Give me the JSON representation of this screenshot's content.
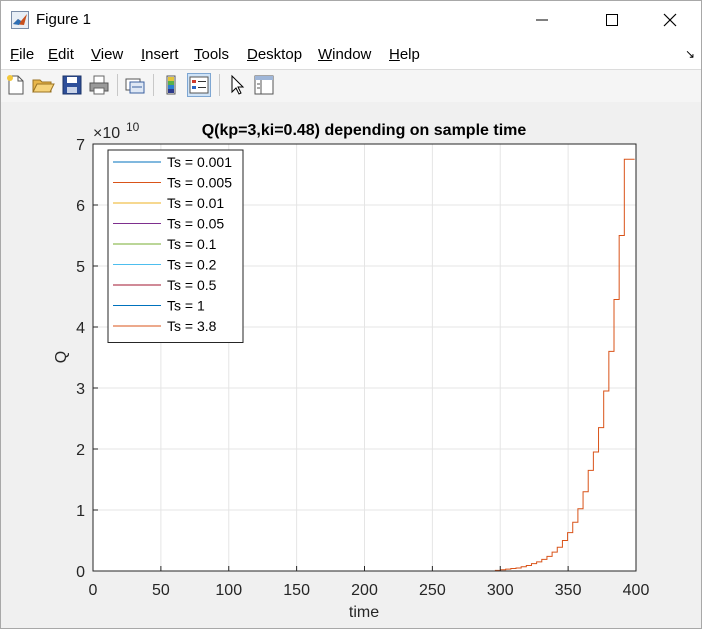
{
  "window": {
    "title": "Figure 1",
    "controls": [
      "minimize",
      "maximize",
      "close"
    ]
  },
  "menu": {
    "items": [
      {
        "label": "File",
        "mnemonic": "F",
        "rest": "ile"
      },
      {
        "label": "Edit",
        "mnemonic": "E",
        "rest": "dit"
      },
      {
        "label": "View",
        "mnemonic": "V",
        "rest": "iew"
      },
      {
        "label": "Insert",
        "mnemonic": "I",
        "rest": "nsert"
      },
      {
        "label": "Tools",
        "mnemonic": "T",
        "rest": "ools"
      },
      {
        "label": "Desktop",
        "mnemonic": "D",
        "rest": "esktop"
      },
      {
        "label": "Window",
        "mnemonic": "W",
        "rest": "indow"
      },
      {
        "label": "Help",
        "mnemonic": "H",
        "rest": "elp"
      }
    ],
    "dock_arrow": "↘"
  },
  "toolbar": {
    "buttons": [
      "new-figure-icon",
      "open-file-icon",
      "save-icon",
      "print-icon",
      "link-plot-icon",
      "colorbar-icon",
      "legend-icon",
      "pointer-icon",
      "property-inspector-icon"
    ],
    "active": [
      "legend-icon"
    ]
  },
  "chart_data": {
    "type": "line",
    "title": "Q(kp=3,ki=0.48) depending on sample time",
    "xlabel": "time",
    "ylabel": "Q",
    "y_exponent_label": "10",
    "xlim": [
      0,
      400
    ],
    "ylim": [
      0,
      7
    ],
    "y_scale_factor": 10000000000.0,
    "xticks": [
      "0",
      "50",
      "100",
      "150",
      "200",
      "250",
      "300",
      "350",
      "400"
    ],
    "yticks": [
      "0",
      "1",
      "2",
      "3",
      "4",
      "5",
      "6",
      "7"
    ],
    "grid": true,
    "legend_placement": "top-left",
    "series": [
      {
        "name": "Ts = 0.001",
        "color": "#0072bd",
        "sample_time": 0.001,
        "profile": "flat",
        "x": [
          0,
          400
        ],
        "y": [
          0,
          0
        ]
      },
      {
        "name": "Ts = 0.005",
        "color": "#d95319",
        "sample_time": 0.005,
        "profile": "flat",
        "x": [
          0,
          400
        ],
        "y": [
          0,
          0
        ]
      },
      {
        "name": "Ts = 0.01",
        "color": "#edb120",
        "sample_time": 0.01,
        "profile": "flat",
        "x": [
          0,
          400
        ],
        "y": [
          0,
          0
        ]
      },
      {
        "name": "Ts = 0.05",
        "color": "#7e2f8e",
        "sample_time": 0.05,
        "profile": "flat",
        "x": [
          0,
          400
        ],
        "y": [
          0,
          0
        ]
      },
      {
        "name": "Ts = 0.1",
        "color": "#77ac30",
        "sample_time": 0.1,
        "profile": "flat",
        "x": [
          0,
          400
        ],
        "y": [
          0,
          0
        ]
      },
      {
        "name": "Ts = 0.2",
        "color": "#4dbeee",
        "sample_time": 0.2,
        "profile": "flat",
        "x": [
          0,
          400
        ],
        "y": [
          0,
          0
        ]
      },
      {
        "name": "Ts = 0.5",
        "color": "#a2142f",
        "sample_time": 0.5,
        "profile": "flat",
        "x": [
          0,
          400
        ],
        "y": [
          0,
          0
        ]
      },
      {
        "name": "Ts = 1",
        "color": "#0072bd",
        "sample_time": 1,
        "profile": "flat",
        "x": [
          0,
          400
        ],
        "y": [
          0,
          0
        ]
      },
      {
        "name": "Ts = 3.8",
        "color": "#d95319",
        "sample_time": 3.8,
        "profile": "staircase",
        "x": [
          0,
          296.4,
          300.2,
          304,
          307.8,
          311.6,
          315.4,
          319.2,
          323,
          326.8,
          330.6,
          334.4,
          338.2,
          342,
          345.8,
          349.6,
          353.4,
          357.2,
          361,
          364.8,
          368.6,
          372.4,
          376.2,
          380,
          383.8,
          387.6,
          391.4,
          395.2,
          399
        ],
        "y": [
          0,
          0.01,
          0.02,
          0.03,
          0.04,
          0.05,
          0.07,
          0.09,
          0.12,
          0.15,
          0.19,
          0.24,
          0.31,
          0.39,
          0.5,
          0.63,
          0.8,
          1.02,
          1.3,
          1.65,
          1.95,
          2.35,
          2.95,
          3.6,
          4.45,
          5.5,
          6.75,
          6.75,
          6.75
        ]
      }
    ]
  }
}
